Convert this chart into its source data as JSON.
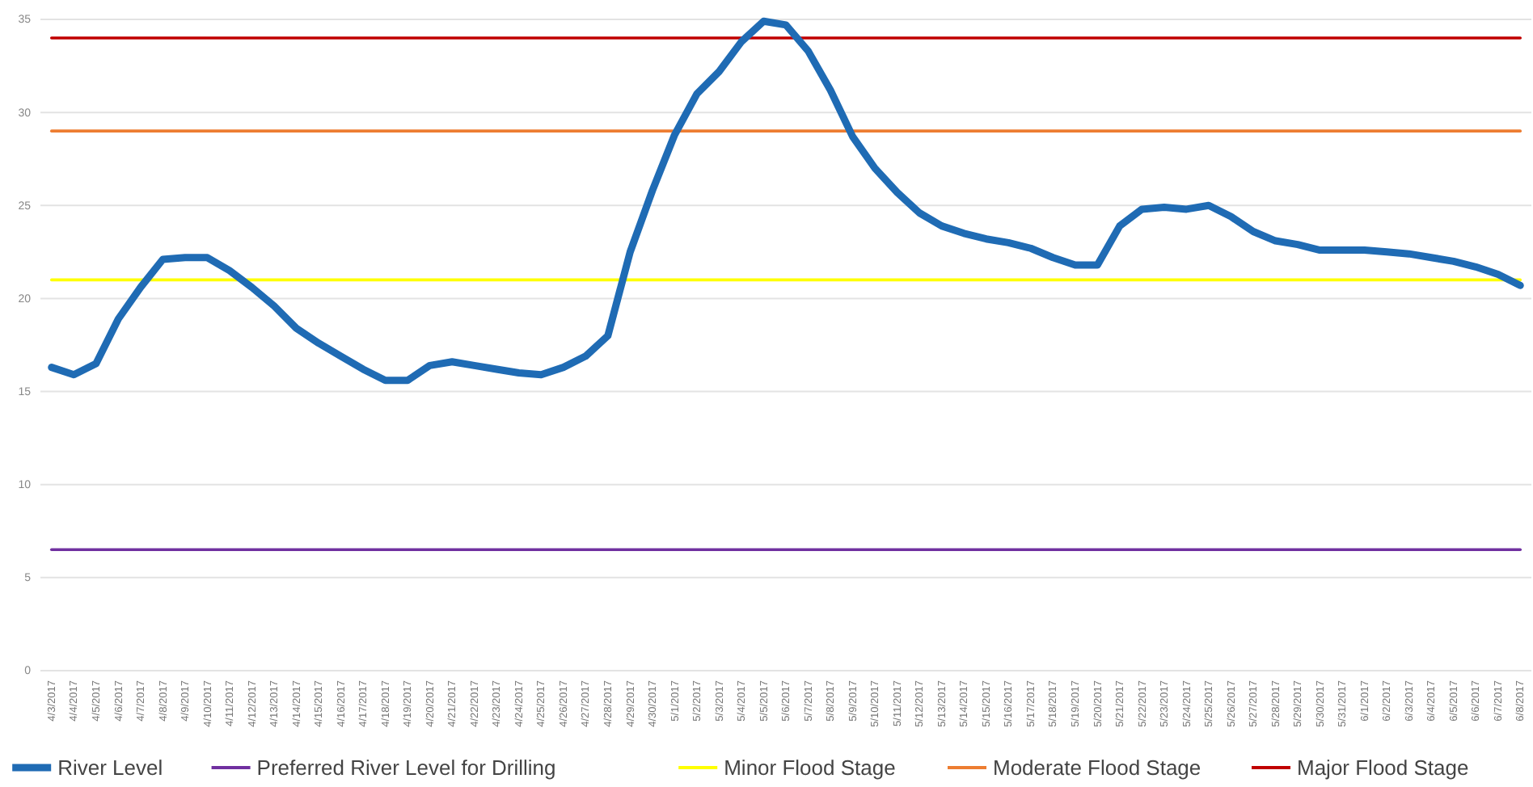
{
  "chart_data": {
    "type": "line",
    "categories": [
      "4/3/2017",
      "4/4/2017",
      "4/5/2017",
      "4/6/2017",
      "4/7/2017",
      "4/8/2017",
      "4/9/2017",
      "4/10/2017",
      "4/11/2017",
      "4/12/2017",
      "4/13/2017",
      "4/14/2017",
      "4/15/2017",
      "4/16/2017",
      "4/17/2017",
      "4/18/2017",
      "4/19/2017",
      "4/20/2017",
      "4/21/2017",
      "4/22/2017",
      "4/23/2017",
      "4/24/2017",
      "4/25/2017",
      "4/26/2017",
      "4/27/2017",
      "4/28/2017",
      "4/29/2017",
      "4/30/2017",
      "5/1/2017",
      "5/2/2017",
      "5/3/2017",
      "5/4/2017",
      "5/5/2017",
      "5/6/2017",
      "5/7/2017",
      "5/8/2017",
      "5/9/2017",
      "5/10/2017",
      "5/11/2017",
      "5/12/2017",
      "5/13/2017",
      "5/14/2017",
      "5/15/2017",
      "5/16/2017",
      "5/17/2017",
      "5/18/2017",
      "5/19/2017",
      "5/20/2017",
      "5/21/2017",
      "5/22/2017",
      "5/23/2017",
      "5/24/2017",
      "5/25/2017",
      "5/26/2017",
      "5/27/2017",
      "5/28/2017",
      "5/29/2017",
      "5/30/2017",
      "5/31/2017",
      "6/1/2017",
      "6/2/2017",
      "6/3/2017",
      "6/4/2017",
      "6/5/2017",
      "6/6/2017",
      "6/7/2017",
      "6/8/2017"
    ],
    "series": [
      {
        "name": "River Level",
        "color": "#1f6bb4",
        "values": [
          16.3,
          15.9,
          16.5,
          18.9,
          20.6,
          22.1,
          22.2,
          22.2,
          21.5,
          20.6,
          19.6,
          18.4,
          17.6,
          16.9,
          16.2,
          15.6,
          15.6,
          16.4,
          16.6,
          16.4,
          16.2,
          16.0,
          15.9,
          16.3,
          16.9,
          18.0,
          22.5,
          25.8,
          28.8,
          31.0,
          32.2,
          33.8,
          34.9,
          34.7,
          33.3,
          31.2,
          28.7,
          27.0,
          25.7,
          24.6,
          23.9,
          23.5,
          23.2,
          23.0,
          22.7,
          22.2,
          21.8,
          21.8,
          23.9,
          24.8,
          24.9,
          24.8,
          25.0,
          24.4,
          23.6,
          23.1,
          22.9,
          22.6,
          22.6,
          22.6,
          22.5,
          22.4,
          22.2,
          22.0,
          21.7,
          21.3,
          20.7
        ]
      },
      {
        "name": "Preferred River Level for Drilling",
        "color": "#7030a0",
        "values": [
          6.5,
          6.5,
          6.5,
          6.5,
          6.5,
          6.5,
          6.5,
          6.5,
          6.5,
          6.5,
          6.5,
          6.5,
          6.5,
          6.5,
          6.5,
          6.5,
          6.5,
          6.5,
          6.5,
          6.5,
          6.5,
          6.5,
          6.5,
          6.5,
          6.5,
          6.5,
          6.5,
          6.5,
          6.5,
          6.5,
          6.5,
          6.5,
          6.5,
          6.5,
          6.5,
          6.5,
          6.5,
          6.5,
          6.5,
          6.5,
          6.5,
          6.5,
          6.5,
          6.5,
          6.5,
          6.5,
          6.5,
          6.5,
          6.5,
          6.5,
          6.5,
          6.5,
          6.5,
          6.5,
          6.5,
          6.5,
          6.5,
          6.5,
          6.5,
          6.5,
          6.5,
          6.5,
          6.5,
          6.5,
          6.5,
          6.5,
          6.5
        ]
      },
      {
        "name": "Minor Flood Stage",
        "color": "#ffff00",
        "values": [
          21,
          21,
          21,
          21,
          21,
          21,
          21,
          21,
          21,
          21,
          21,
          21,
          21,
          21,
          21,
          21,
          21,
          21,
          21,
          21,
          21,
          21,
          21,
          21,
          21,
          21,
          21,
          21,
          21,
          21,
          21,
          21,
          21,
          21,
          21,
          21,
          21,
          21,
          21,
          21,
          21,
          21,
          21,
          21,
          21,
          21,
          21,
          21,
          21,
          21,
          21,
          21,
          21,
          21,
          21,
          21,
          21,
          21,
          21,
          21,
          21,
          21,
          21,
          21,
          21,
          21,
          21
        ]
      },
      {
        "name": "Moderate Flood Stage",
        "color": "#ed7d31",
        "values": [
          29,
          29,
          29,
          29,
          29,
          29,
          29,
          29,
          29,
          29,
          29,
          29,
          29,
          29,
          29,
          29,
          29,
          29,
          29,
          29,
          29,
          29,
          29,
          29,
          29,
          29,
          29,
          29,
          29,
          29,
          29,
          29,
          29,
          29,
          29,
          29,
          29,
          29,
          29,
          29,
          29,
          29,
          29,
          29,
          29,
          29,
          29,
          29,
          29,
          29,
          29,
          29,
          29,
          29,
          29,
          29,
          29,
          29,
          29,
          29,
          29,
          29,
          29,
          29,
          29,
          29,
          29
        ]
      },
      {
        "name": "Major Flood Stage",
        "color": "#c00000",
        "values": [
          34,
          34,
          34,
          34,
          34,
          34,
          34,
          34,
          34,
          34,
          34,
          34,
          34,
          34,
          34,
          34,
          34,
          34,
          34,
          34,
          34,
          34,
          34,
          34,
          34,
          34,
          34,
          34,
          34,
          34,
          34,
          34,
          34,
          34,
          34,
          34,
          34,
          34,
          34,
          34,
          34,
          34,
          34,
          34,
          34,
          34,
          34,
          34,
          34,
          34,
          34,
          34,
          34,
          34,
          34,
          34,
          34,
          34,
          34,
          34,
          34,
          34,
          34,
          34,
          34,
          34,
          34
        ]
      }
    ],
    "ylim": [
      0,
      35
    ],
    "yticks": [
      0,
      5,
      10,
      15,
      20,
      25,
      30,
      35
    ],
    "grid": "y",
    "legend": "bottom",
    "marker": "none",
    "line_style": "solid"
  }
}
